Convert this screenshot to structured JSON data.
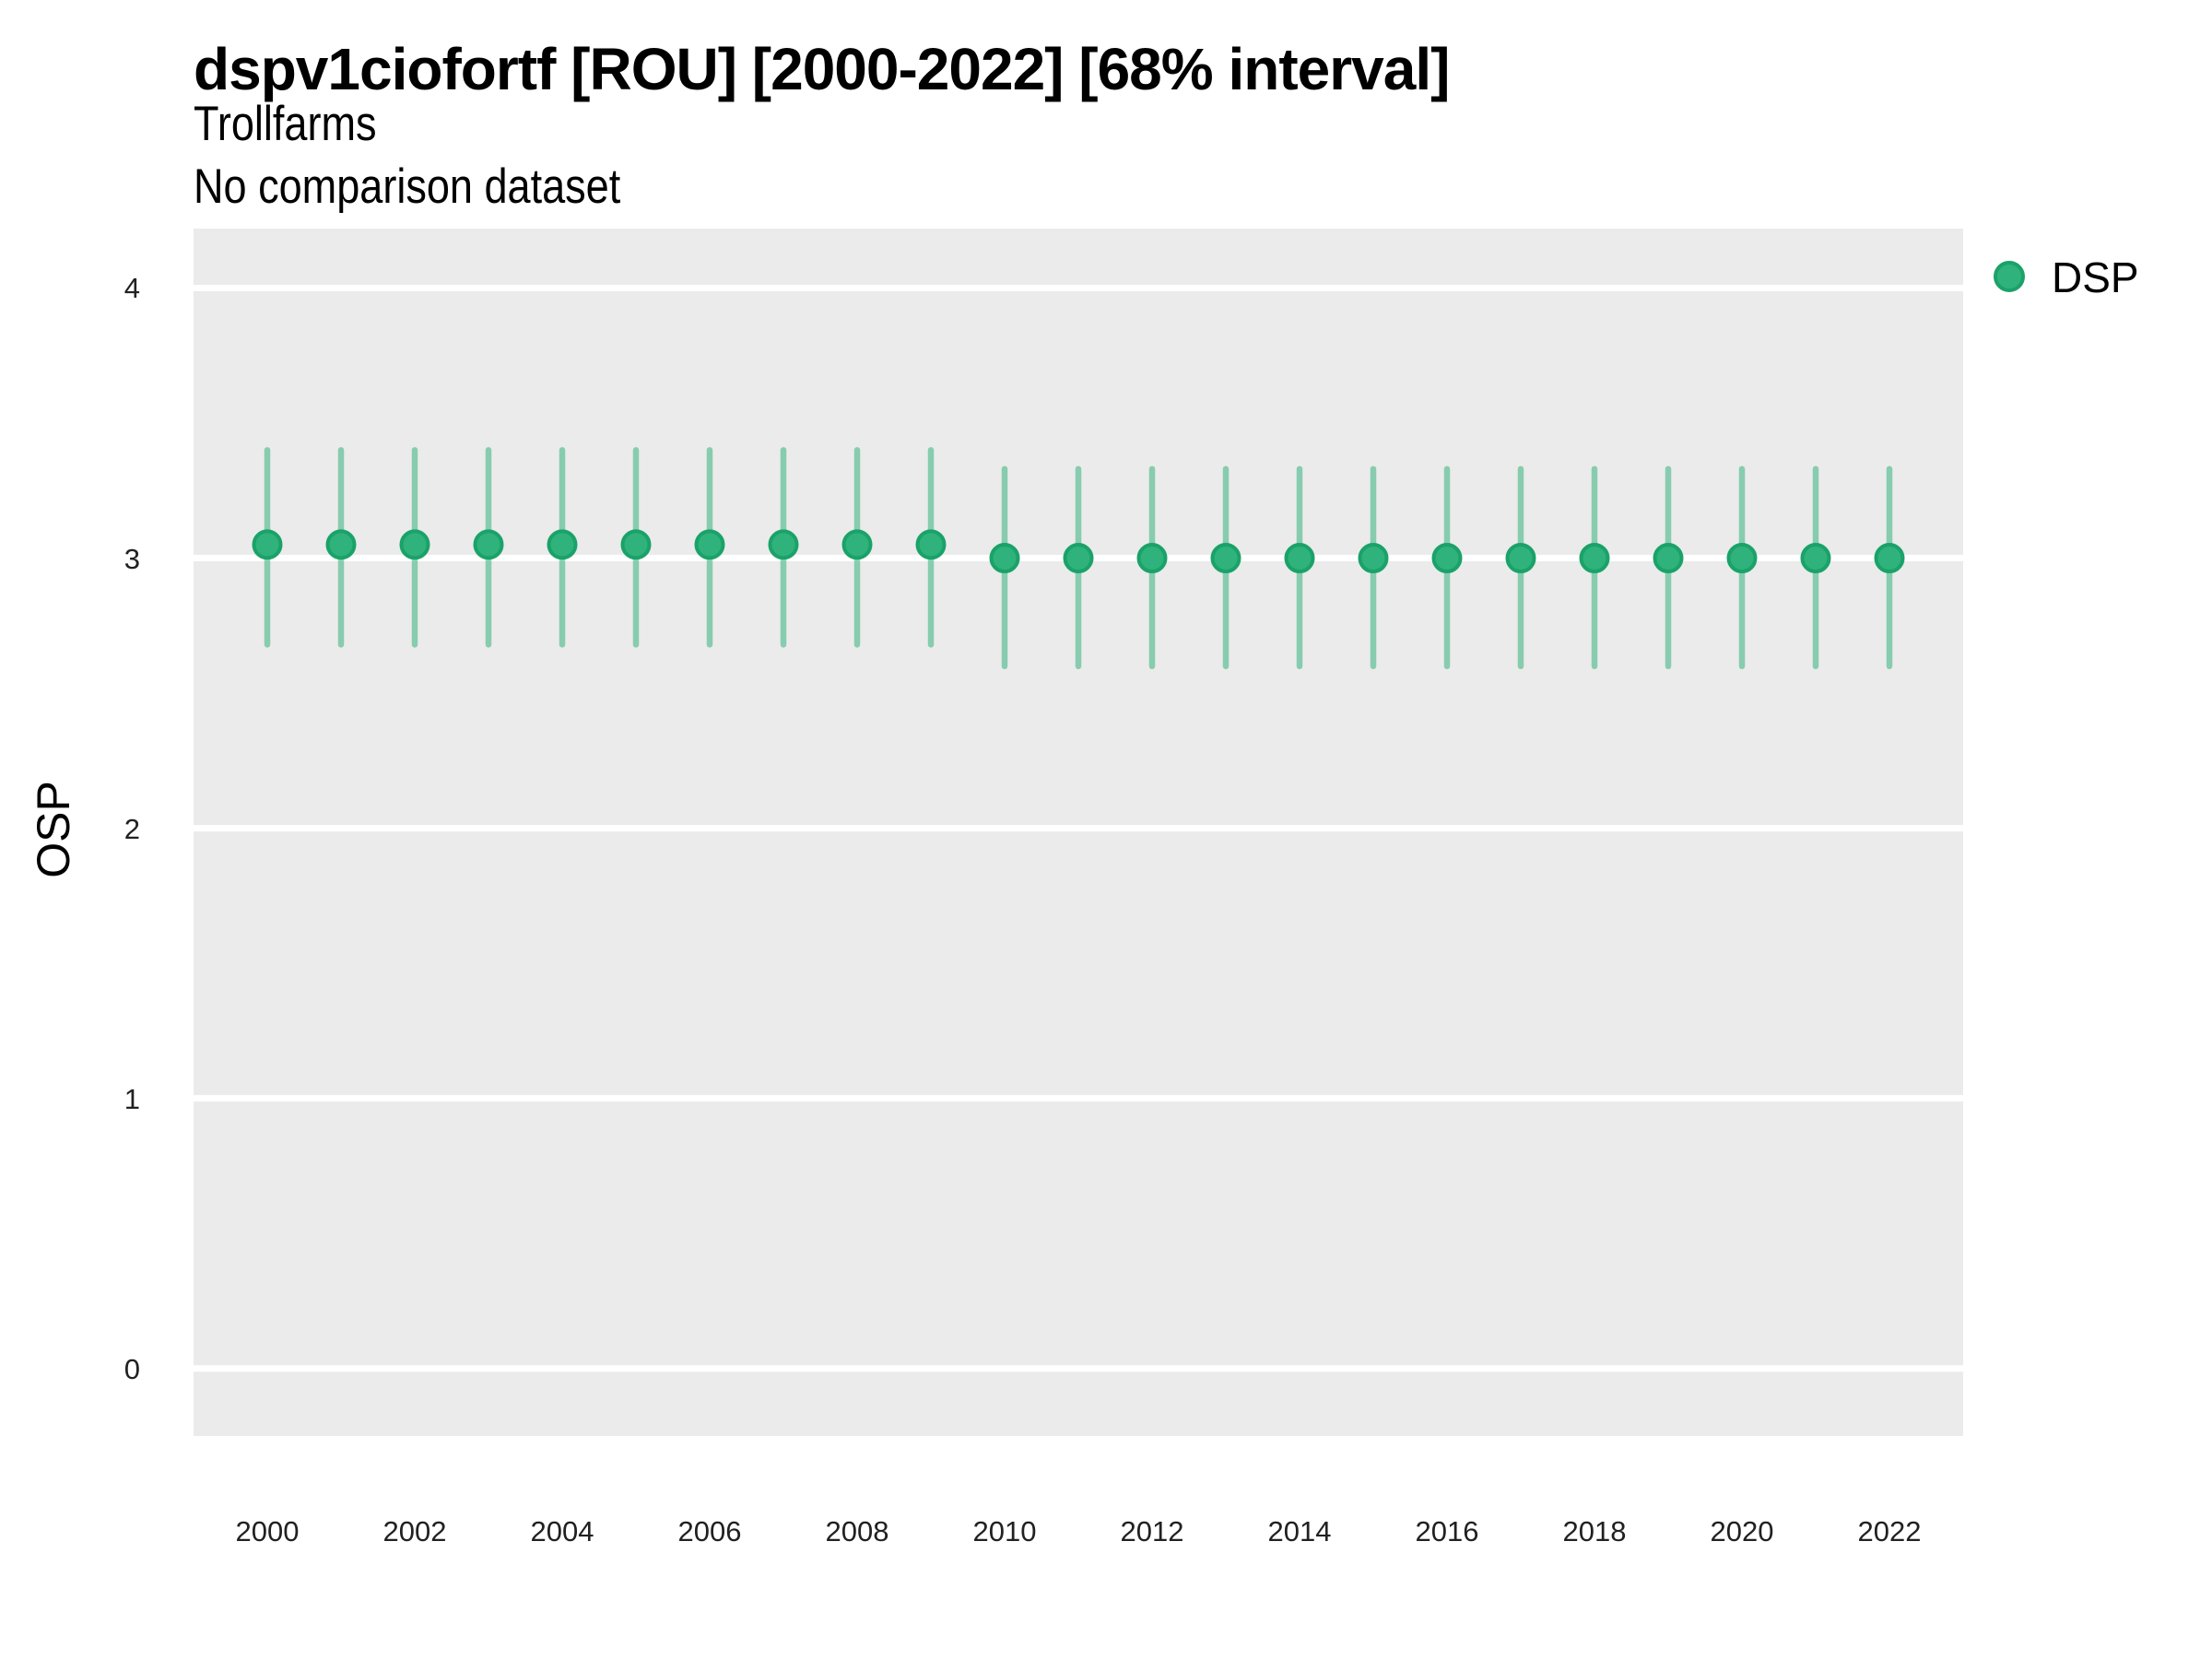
{
  "title": "dspv1ciofortf [ROU] [2000-2022] [68% interval]",
  "subtitle_line1": "Trollfarms",
  "subtitle_line2": "No comparison dataset",
  "colors": {
    "panel_bg": "#ebebeb",
    "gridline": "#ffffff",
    "point_fill": "#2fb27b",
    "point_stroke": "#1aa269",
    "interval": "rgba(44,176,121,0.52)",
    "title_text": "#000000",
    "tick_text": "#212121"
  },
  "chart_data": {
    "type": "pointrange",
    "title": "dspv1ciofortf [ROU] [2000-2022] [68% interval]",
    "subtitle_line1": "Trollfarms",
    "subtitle_line2": "No comparison dataset",
    "xlabel": "",
    "ylabel": "OSP",
    "interval_level": "68%",
    "legend_position": "right",
    "grid": "major-horizontal",
    "xlim": [
      1999,
      2023
    ],
    "ylim": [
      -0.25,
      4.22
    ],
    "x_ticks": [
      2000,
      2002,
      2004,
      2006,
      2008,
      2010,
      2012,
      2014,
      2016,
      2018,
      2020,
      2022
    ],
    "y_ticks": [
      0,
      1,
      2,
      3,
      4
    ],
    "series": [
      {
        "name": "DSP",
        "x": [
          2000,
          2001,
          2002,
          2003,
          2004,
          2005,
          2006,
          2007,
          2008,
          2009,
          2010,
          2011,
          2012,
          2013,
          2014,
          2015,
          2016,
          2017,
          2018,
          2019,
          2020,
          2021,
          2022
        ],
        "y": [
          3.05,
          3.05,
          3.05,
          3.05,
          3.05,
          3.05,
          3.05,
          3.05,
          3.05,
          3.05,
          3.0,
          3.0,
          3.0,
          3.0,
          3.0,
          3.0,
          3.0,
          3.0,
          3.0,
          3.0,
          3.0,
          3.0,
          3.0
        ],
        "y_lower": [
          2.68,
          2.68,
          2.68,
          2.68,
          2.68,
          2.68,
          2.68,
          2.68,
          2.68,
          2.68,
          2.6,
          2.6,
          2.6,
          2.6,
          2.6,
          2.6,
          2.6,
          2.6,
          2.6,
          2.6,
          2.6,
          2.6,
          2.6
        ],
        "y_upper": [
          3.4,
          3.4,
          3.4,
          3.4,
          3.4,
          3.4,
          3.4,
          3.4,
          3.4,
          3.4,
          3.33,
          3.33,
          3.33,
          3.33,
          3.33,
          3.33,
          3.33,
          3.33,
          3.33,
          3.33,
          3.33,
          3.33,
          3.33
        ]
      }
    ]
  }
}
